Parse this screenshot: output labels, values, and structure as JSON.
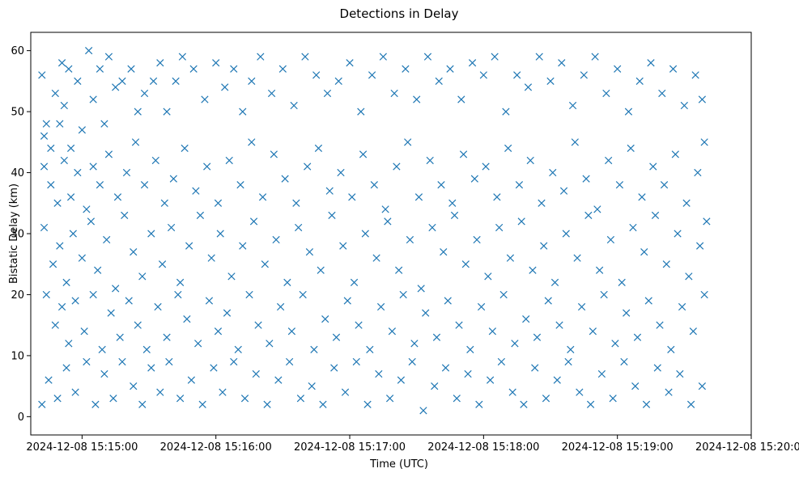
{
  "chart_data": {
    "type": "scatter",
    "title": "Detections in Delay",
    "xlabel": "Time (UTC)",
    "ylabel": "Bistatic Delay (km)",
    "marker": "x",
    "color": "#1f77b4",
    "x_unit": "seconds since 2024-12-08 15:15:00",
    "xlim": [
      -23,
      300
    ],
    "ylim": [
      -3,
      63
    ],
    "x_ticks": [
      0,
      60,
      120,
      180,
      240,
      300
    ],
    "x_tick_labels": [
      "2024-12-08 15:15:00",
      "2024-12-08 15:16:00",
      "2024-12-08 15:17:00",
      "2024-12-08 15:18:00",
      "2024-12-08 15:19:00",
      "2024-12-08 15:20:00"
    ],
    "y_ticks": [
      0,
      10,
      20,
      30,
      40,
      50,
      60
    ],
    "y_tick_labels": [
      "0",
      "10",
      "20",
      "30",
      "40",
      "50",
      "60"
    ],
    "grid": false,
    "x_data_range": [
      -18,
      280
    ],
    "y_data_range": [
      1,
      60
    ],
    "series": [
      {
        "name": "detections",
        "points": [
          [
            -18,
            56
          ],
          [
            -17,
            46
          ],
          [
            -16,
            48
          ],
          [
            -14,
            44
          ],
          [
            -12,
            53
          ],
          [
            -10,
            48
          ],
          [
            -9,
            58
          ],
          [
            -8,
            51
          ],
          [
            -6,
            57
          ],
          [
            -5,
            44
          ],
          [
            -2,
            55
          ],
          [
            0,
            47
          ],
          [
            3,
            60
          ],
          [
            5,
            52
          ],
          [
            8,
            57
          ],
          [
            10,
            48
          ],
          [
            12,
            59
          ],
          [
            15,
            54
          ],
          [
            18,
            55
          ],
          [
            22,
            57
          ],
          [
            25,
            50
          ],
          [
            28,
            53
          ],
          [
            32,
            55
          ],
          [
            35,
            58
          ],
          [
            38,
            50
          ],
          [
            42,
            55
          ],
          [
            45,
            59
          ],
          [
            50,
            57
          ],
          [
            55,
            52
          ],
          [
            60,
            58
          ],
          [
            64,
            54
          ],
          [
            68,
            57
          ],
          [
            72,
            50
          ],
          [
            76,
            55
          ],
          [
            80,
            59
          ],
          [
            85,
            53
          ],
          [
            90,
            57
          ],
          [
            95,
            51
          ],
          [
            100,
            59
          ],
          [
            105,
            56
          ],
          [
            110,
            53
          ],
          [
            115,
            55
          ],
          [
            120,
            58
          ],
          [
            125,
            50
          ],
          [
            130,
            56
          ],
          [
            135,
            59
          ],
          [
            140,
            53
          ],
          [
            145,
            57
          ],
          [
            150,
            52
          ],
          [
            155,
            59
          ],
          [
            160,
            55
          ],
          [
            165,
            57
          ],
          [
            170,
            52
          ],
          [
            175,
            58
          ],
          [
            180,
            56
          ],
          [
            185,
            59
          ],
          [
            190,
            50
          ],
          [
            195,
            56
          ],
          [
            200,
            54
          ],
          [
            205,
            59
          ],
          [
            210,
            55
          ],
          [
            215,
            58
          ],
          [
            220,
            51
          ],
          [
            225,
            56
          ],
          [
            230,
            59
          ],
          [
            235,
            53
          ],
          [
            240,
            57
          ],
          [
            245,
            50
          ],
          [
            250,
            55
          ],
          [
            255,
            58
          ],
          [
            260,
            53
          ],
          [
            265,
            57
          ],
          [
            270,
            51
          ],
          [
            275,
            56
          ],
          [
            278,
            52
          ],
          [
            -17,
            41
          ],
          [
            -14,
            38
          ],
          [
            -11,
            35
          ],
          [
            -8,
            42
          ],
          [
            -5,
            36
          ],
          [
            -2,
            40
          ],
          [
            2,
            34
          ],
          [
            5,
            41
          ],
          [
            8,
            38
          ],
          [
            12,
            43
          ],
          [
            16,
            36
          ],
          [
            20,
            40
          ],
          [
            24,
            45
          ],
          [
            28,
            38
          ],
          [
            33,
            42
          ],
          [
            37,
            35
          ],
          [
            41,
            39
          ],
          [
            46,
            44
          ],
          [
            51,
            37
          ],
          [
            56,
            41
          ],
          [
            61,
            35
          ],
          [
            66,
            42
          ],
          [
            71,
            38
          ],
          [
            76,
            45
          ],
          [
            81,
            36
          ],
          [
            86,
            43
          ],
          [
            91,
            39
          ],
          [
            96,
            35
          ],
          [
            101,
            41
          ],
          [
            106,
            44
          ],
          [
            111,
            37
          ],
          [
            116,
            40
          ],
          [
            121,
            36
          ],
          [
            126,
            43
          ],
          [
            131,
            38
          ],
          [
            136,
            34
          ],
          [
            141,
            41
          ],
          [
            146,
            45
          ],
          [
            151,
            36
          ],
          [
            156,
            42
          ],
          [
            161,
            38
          ],
          [
            166,
            35
          ],
          [
            171,
            43
          ],
          [
            176,
            39
          ],
          [
            181,
            41
          ],
          [
            186,
            36
          ],
          [
            191,
            44
          ],
          [
            196,
            38
          ],
          [
            201,
            42
          ],
          [
            206,
            35
          ],
          [
            211,
            40
          ],
          [
            216,
            37
          ],
          [
            221,
            45
          ],
          [
            226,
            39
          ],
          [
            231,
            34
          ],
          [
            236,
            42
          ],
          [
            241,
            38
          ],
          [
            246,
            44
          ],
          [
            251,
            36
          ],
          [
            256,
            41
          ],
          [
            261,
            38
          ],
          [
            266,
            43
          ],
          [
            271,
            35
          ],
          [
            276,
            40
          ],
          [
            279,
            45
          ],
          [
            -17,
            31
          ],
          [
            -13,
            25
          ],
          [
            -10,
            28
          ],
          [
            -7,
            22
          ],
          [
            -4,
            30
          ],
          [
            0,
            26
          ],
          [
            4,
            32
          ],
          [
            7,
            24
          ],
          [
            11,
            29
          ],
          [
            15,
            21
          ],
          [
            19,
            33
          ],
          [
            23,
            27
          ],
          [
            27,
            23
          ],
          [
            31,
            30
          ],
          [
            36,
            25
          ],
          [
            40,
            31
          ],
          [
            44,
            22
          ],
          [
            48,
            28
          ],
          [
            53,
            33
          ],
          [
            58,
            26
          ],
          [
            62,
            30
          ],
          [
            67,
            23
          ],
          [
            72,
            28
          ],
          [
            77,
            32
          ],
          [
            82,
            25
          ],
          [
            87,
            29
          ],
          [
            92,
            22
          ],
          [
            97,
            31
          ],
          [
            102,
            27
          ],
          [
            107,
            24
          ],
          [
            112,
            33
          ],
          [
            117,
            28
          ],
          [
            122,
            22
          ],
          [
            127,
            30
          ],
          [
            132,
            26
          ],
          [
            137,
            32
          ],
          [
            142,
            24
          ],
          [
            147,
            29
          ],
          [
            152,
            21
          ],
          [
            157,
            31
          ],
          [
            162,
            27
          ],
          [
            167,
            33
          ],
          [
            172,
            25
          ],
          [
            177,
            29
          ],
          [
            182,
            23
          ],
          [
            187,
            31
          ],
          [
            192,
            26
          ],
          [
            197,
            32
          ],
          [
            202,
            24
          ],
          [
            207,
            28
          ],
          [
            212,
            22
          ],
          [
            217,
            30
          ],
          [
            222,
            26
          ],
          [
            227,
            33
          ],
          [
            232,
            24
          ],
          [
            237,
            29
          ],
          [
            242,
            22
          ],
          [
            247,
            31
          ],
          [
            252,
            27
          ],
          [
            257,
            33
          ],
          [
            262,
            25
          ],
          [
            267,
            30
          ],
          [
            272,
            23
          ],
          [
            277,
            28
          ],
          [
            280,
            32
          ],
          [
            -16,
            20
          ],
          [
            -12,
            15
          ],
          [
            -9,
            18
          ],
          [
            -6,
            12
          ],
          [
            -3,
            19
          ],
          [
            1,
            14
          ],
          [
            5,
            20
          ],
          [
            9,
            11
          ],
          [
            13,
            17
          ],
          [
            17,
            13
          ],
          [
            21,
            19
          ],
          [
            25,
            15
          ],
          [
            29,
            11
          ],
          [
            34,
            18
          ],
          [
            38,
            13
          ],
          [
            43,
            20
          ],
          [
            47,
            16
          ],
          [
            52,
            12
          ],
          [
            57,
            19
          ],
          [
            61,
            14
          ],
          [
            65,
            17
          ],
          [
            70,
            11
          ],
          [
            75,
            20
          ],
          [
            79,
            15
          ],
          [
            84,
            12
          ],
          [
            89,
            18
          ],
          [
            94,
            14
          ],
          [
            99,
            20
          ],
          [
            104,
            11
          ],
          [
            109,
            16
          ],
          [
            114,
            13
          ],
          [
            119,
            19
          ],
          [
            124,
            15
          ],
          [
            129,
            11
          ],
          [
            134,
            18
          ],
          [
            139,
            14
          ],
          [
            144,
            20
          ],
          [
            149,
            12
          ],
          [
            154,
            17
          ],
          [
            159,
            13
          ],
          [
            164,
            19
          ],
          [
            169,
            15
          ],
          [
            174,
            11
          ],
          [
            179,
            18
          ],
          [
            184,
            14
          ],
          [
            189,
            20
          ],
          [
            194,
            12
          ],
          [
            199,
            16
          ],
          [
            204,
            13
          ],
          [
            209,
            19
          ],
          [
            214,
            15
          ],
          [
            219,
            11
          ],
          [
            224,
            18
          ],
          [
            229,
            14
          ],
          [
            234,
            20
          ],
          [
            239,
            12
          ],
          [
            244,
            17
          ],
          [
            249,
            13
          ],
          [
            254,
            19
          ],
          [
            259,
            15
          ],
          [
            264,
            11
          ],
          [
            269,
            18
          ],
          [
            274,
            14
          ],
          [
            279,
            20
          ],
          [
            -18,
            2
          ],
          [
            -15,
            6
          ],
          [
            -11,
            3
          ],
          [
            -7,
            8
          ],
          [
            -3,
            4
          ],
          [
            2,
            9
          ],
          [
            6,
            2
          ],
          [
            10,
            7
          ],
          [
            14,
            3
          ],
          [
            18,
            9
          ],
          [
            23,
            5
          ],
          [
            27,
            2
          ],
          [
            31,
            8
          ],
          [
            35,
            4
          ],
          [
            39,
            9
          ],
          [
            44,
            3
          ],
          [
            49,
            6
          ],
          [
            54,
            2
          ],
          [
            59,
            8
          ],
          [
            63,
            4
          ],
          [
            68,
            9
          ],
          [
            73,
            3
          ],
          [
            78,
            7
          ],
          [
            83,
            2
          ],
          [
            88,
            6
          ],
          [
            93,
            9
          ],
          [
            98,
            3
          ],
          [
            103,
            5
          ],
          [
            108,
            2
          ],
          [
            113,
            8
          ],
          [
            118,
            4
          ],
          [
            123,
            9
          ],
          [
            128,
            2
          ],
          [
            133,
            7
          ],
          [
            138,
            3
          ],
          [
            143,
            6
          ],
          [
            148,
            9
          ],
          [
            153,
            1
          ],
          [
            158,
            5
          ],
          [
            163,
            8
          ],
          [
            168,
            3
          ],
          [
            173,
            7
          ],
          [
            178,
            2
          ],
          [
            183,
            6
          ],
          [
            188,
            9
          ],
          [
            193,
            4
          ],
          [
            198,
            2
          ],
          [
            203,
            8
          ],
          [
            208,
            3
          ],
          [
            213,
            6
          ],
          [
            218,
            9
          ],
          [
            223,
            4
          ],
          [
            228,
            2
          ],
          [
            233,
            7
          ],
          [
            238,
            3
          ],
          [
            243,
            9
          ],
          [
            248,
            5
          ],
          [
            253,
            2
          ],
          [
            258,
            8
          ],
          [
            263,
            4
          ],
          [
            268,
            7
          ],
          [
            273,
            2
          ],
          [
            278,
            5
          ]
        ]
      }
    ]
  }
}
